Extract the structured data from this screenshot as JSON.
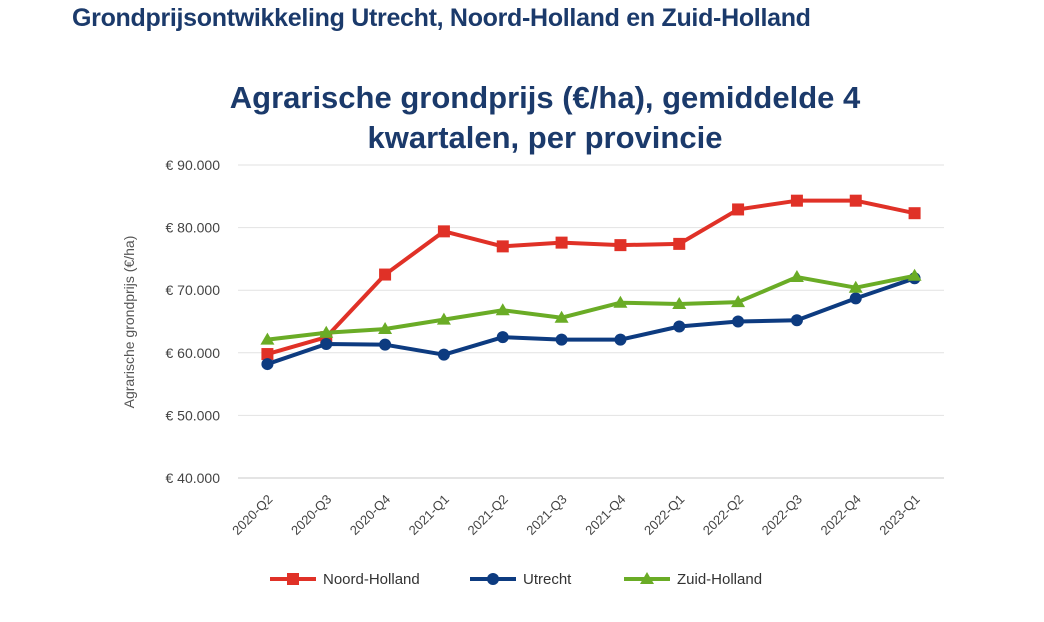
{
  "page_heading": "Grondprijsontwikkeling Utrecht, Noord-Holland en Zuid-Holland",
  "chart_data": {
    "type": "line",
    "title_lines": [
      "Agrarische grondprijs (€/ha), gemiddelde 4",
      "kwartalen, per provincie"
    ],
    "ylabel": "Agrarische grondprijs (€/ha)",
    "xlabel": "",
    "ylim": [
      40000,
      90000
    ],
    "ytick_values": [
      40000,
      50000,
      60000,
      70000,
      80000,
      90000
    ],
    "ytick_labels": [
      "€ 40.000",
      "€ 50.000",
      "€ 60.000",
      "€ 70.000",
      "€ 80.000",
      "€ 90.000"
    ],
    "grid": "horizontal",
    "legend_position": "bottom",
    "categories": [
      "2020-Q2",
      "2020-Q3",
      "2020-Q4",
      "2021-Q1",
      "2021-Q2",
      "2021-Q3",
      "2021-Q4",
      "2022-Q1",
      "2022-Q2",
      "2022-Q3",
      "2022-Q4",
      "2023-Q1"
    ],
    "series": [
      {
        "name": "Noord-Holland",
        "color": "#e03127",
        "marker": "square",
        "values": [
          59800,
          62500,
          72500,
          79400,
          77000,
          77600,
          77200,
          77400,
          82900,
          84300,
          84300,
          82300
        ]
      },
      {
        "name": "Utrecht",
        "color": "#0d3b80",
        "marker": "circle",
        "values": [
          58200,
          61400,
          61300,
          59700,
          62500,
          62100,
          62100,
          64200,
          65000,
          65200,
          68700,
          71900
        ]
      },
      {
        "name": "Zuid-Holland",
        "color": "#6aac26",
        "marker": "triangle",
        "values": [
          62100,
          63200,
          63800,
          65300,
          66800,
          65600,
          68000,
          67800,
          68100,
          72100,
          70400,
          72300
        ]
      }
    ]
  }
}
